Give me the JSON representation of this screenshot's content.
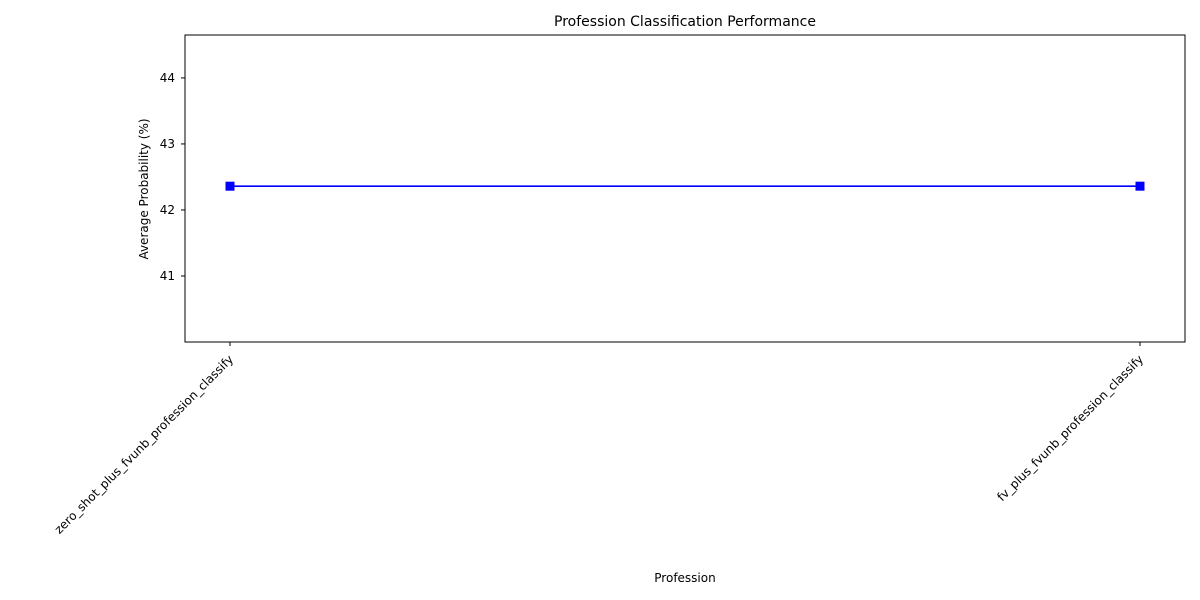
{
  "chart_data": {
    "type": "line",
    "title": "Profession Classification Performance",
    "xlabel": "Profession",
    "ylabel": "Average Probability (%)",
    "categories": [
      "zero_shot_plus_fvunb_profession_classify",
      "fv_plus_fvunb_profession_classify"
    ],
    "series": [
      {
        "values": [
          42.36,
          42.36
        ],
        "color": "#0000ff",
        "marker": "square"
      }
    ],
    "ylim": [
      40.0,
      44.65
    ],
    "yticks": [
      41,
      42,
      43,
      44
    ],
    "grid": false,
    "legend": "none"
  }
}
